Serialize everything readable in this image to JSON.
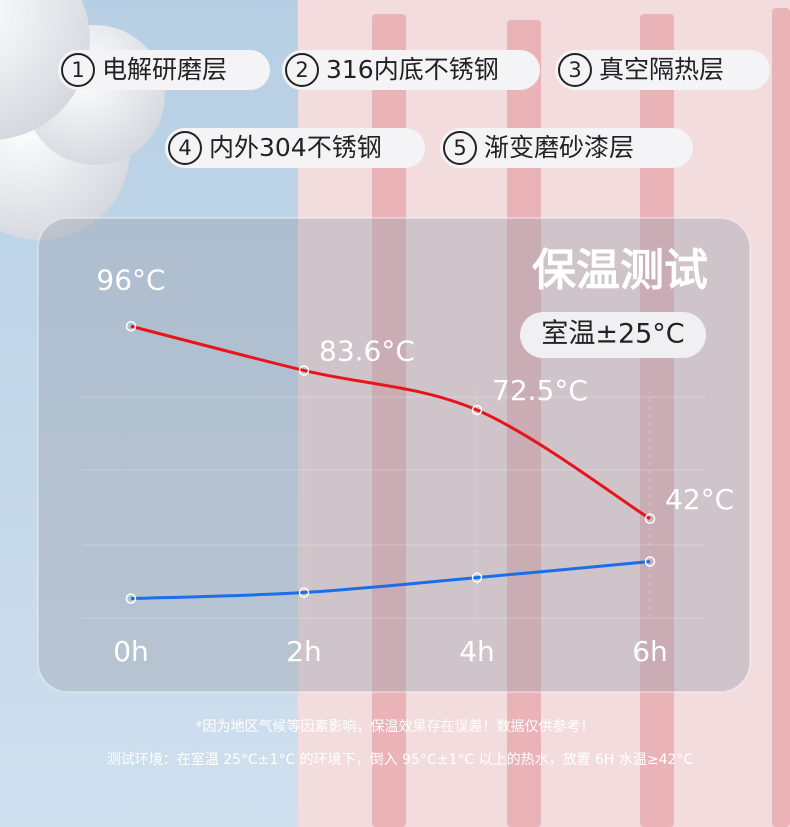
{
  "features": [
    {
      "number": "1",
      "label": "电解研磨层"
    },
    {
      "number": "2",
      "label": "316内底不锈钢"
    },
    {
      "number": "3",
      "label": "真空隔热层"
    },
    {
      "number": "4",
      "label": "内外304不锈钢"
    },
    {
      "number": "5",
      "label": "渐变磨砂漆层"
    }
  ],
  "chart_data": {
    "type": "line",
    "title": "保温测试",
    "subtitle": "室温±25°C",
    "categories": [
      "0h",
      "2h",
      "4h",
      "6h"
    ],
    "series": [
      {
        "color": "#e8141c",
        "values": [
          96,
          83.6,
          72.5,
          42
        ],
        "value_labels": [
          "96°C",
          "83.6°C",
          "72.5°C",
          "42°C"
        ]
      },
      {
        "color": "#1a6fe8",
        "values": [
          19.6,
          21.3,
          25.5,
          30
        ]
      }
    ],
    "ylim": [
      15,
      100
    ]
  },
  "footnotes": [
    "*因为地区气候等因素影响，保温效果存在误差！数据仅供参考！",
    "测试环境：在室温 25°C±1°C 的环境下，倒入 95°C±1°C 以上的热水，放置 6H 水温≥42°C"
  ]
}
